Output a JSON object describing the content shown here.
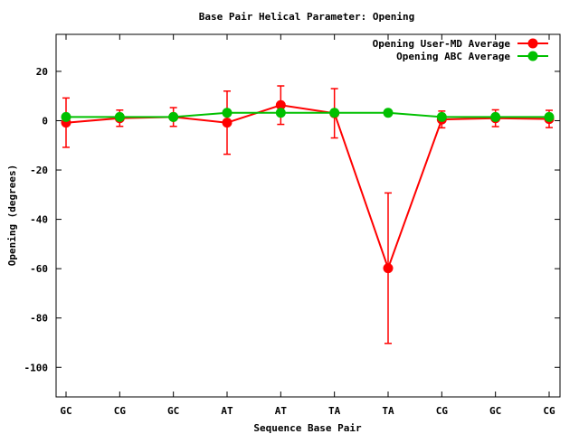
{
  "chart_data": {
    "type": "line",
    "title": "Base Pair Helical Parameter: Opening",
    "xlabel": "Sequence Base Pair",
    "ylabel": "Opening (degrees)",
    "categories": [
      "GC",
      "CG",
      "GC",
      "AT",
      "AT",
      "TA",
      "TA",
      "CG",
      "GC",
      "CG"
    ],
    "ylim": [
      -112,
      35
    ],
    "yticks": [
      20,
      0,
      -20,
      -40,
      -60,
      -80,
      -100
    ],
    "grid": false,
    "legend_position": "top-right",
    "series": [
      {
        "name": "Opening User-MD Average",
        "color": "#ff0000",
        "values": [
          -0.8,
          1.0,
          1.5,
          -0.8,
          6.3,
          3.0,
          -59.8,
          0.5,
          1.0,
          0.7
        ],
        "error": [
          10.0,
          3.3,
          3.8,
          12.8,
          7.8,
          10.0,
          30.5,
          3.4,
          3.4,
          3.5
        ]
      },
      {
        "name": "Opening ABC Average",
        "color": "#00c000",
        "values": [
          1.5,
          1.5,
          1.5,
          3.2,
          3.2,
          3.2,
          3.2,
          1.5,
          1.5,
          1.5
        ]
      }
    ]
  }
}
